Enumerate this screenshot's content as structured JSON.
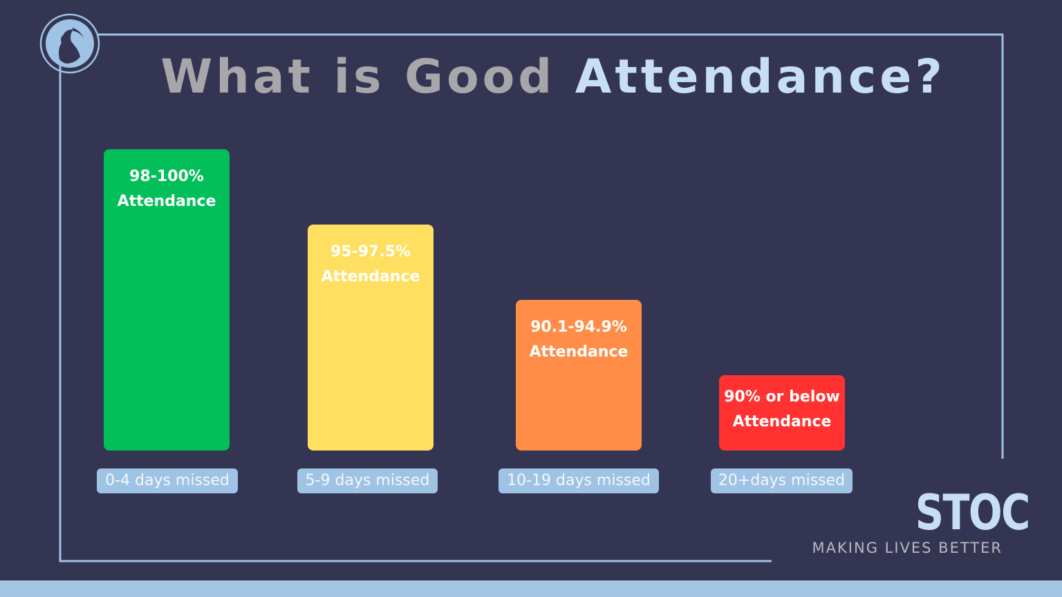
{
  "title": {
    "part1": "What is Good",
    "part2": "Attendance?"
  },
  "chart_data": {
    "type": "bar",
    "categories": [
      "0-4 days missed",
      "5-9 days missed",
      "10-19 days missed",
      "20+days missed"
    ],
    "series": [
      {
        "values": [
          4,
          3,
          2,
          1
        ]
      }
    ],
    "bar_labels": [
      [
        "98-100%",
        "Attendance"
      ],
      [
        "95-97.5%",
        "Attendance"
      ],
      [
        "90.1-94.9%",
        "Attendance"
      ],
      [
        "90% or below",
        "Attendance"
      ]
    ],
    "colors": [
      "#02bf5a",
      "#ffdf5f",
      "#ff8d47",
      "#ff3131"
    ],
    "ylim": [
      0,
      4
    ],
    "grid": false,
    "legend": "none"
  },
  "brand": {
    "name": "STOC",
    "tagline": "MAKING LIVES BETTER"
  },
  "logo_icon": "profile-silhouette-icon",
  "colors": {
    "background": "#343553",
    "accent": "#c7def3",
    "pill": "#9fc3e4",
    "frame": "#9fc3e4"
  }
}
